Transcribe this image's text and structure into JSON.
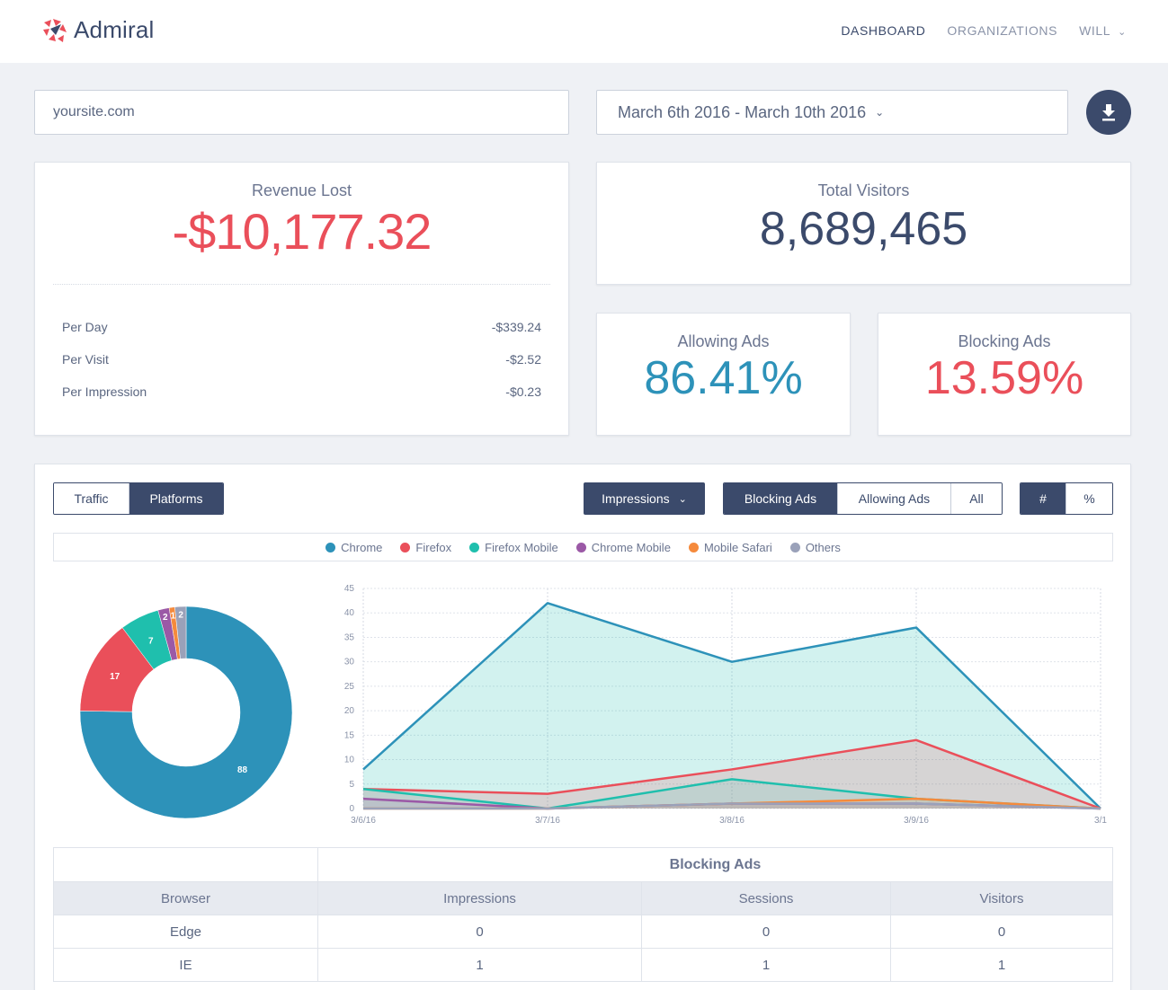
{
  "header": {
    "logo_text": "Admiral",
    "nav": [
      {
        "label": "DASHBOARD",
        "active": true
      },
      {
        "label": "ORGANIZATIONS",
        "active": false
      },
      {
        "label": "WILL",
        "active": false
      }
    ]
  },
  "filters": {
    "site_value": "yoursite.com",
    "date_range": "March 6th 2016 - March 10th 2016"
  },
  "revenue": {
    "title": "Revenue Lost",
    "value": "-$10,177.32",
    "rows": [
      {
        "label": "Per Day",
        "value": "-$339.24"
      },
      {
        "label": "Per Visit",
        "value": "-$2.52"
      },
      {
        "label": "Per Impression",
        "value": "-$0.23"
      }
    ]
  },
  "visitors": {
    "title": "Total Visitors",
    "value": "8,689,465"
  },
  "allowing": {
    "title": "Allowing Ads",
    "value": "86.41%"
  },
  "blocking": {
    "title": "Blocking Ads",
    "value": "13.59%"
  },
  "controls": {
    "tabs": [
      "Traffic",
      "Platforms"
    ],
    "active_tab": "Platforms",
    "metric": "Impressions",
    "filter_buttons": [
      "Blocking Ads",
      "Allowing Ads",
      "All"
    ],
    "active_filter": "Blocking Ads",
    "unit_buttons": [
      "#",
      "%"
    ],
    "active_unit": "#"
  },
  "colors": {
    "Chrome": "#2d92b9",
    "Firefox": "#ea4f5a",
    "Firefox Mobile": "#1fbfad",
    "Chrome Mobile": "#9b59a6",
    "Mobile Safari": "#f58a3c",
    "Others": "#9aa1b9",
    "navy": "#3b4a6b"
  },
  "chart_data": [
    {
      "type": "pie",
      "labels": [
        "Chrome",
        "Firefox",
        "Firefox Mobile",
        "Chrome Mobile",
        "Mobile Safari",
        "Others"
      ],
      "values": [
        88,
        17,
        7,
        2,
        1,
        2
      ]
    },
    {
      "type": "area",
      "x": [
        "3/6/16",
        "3/7/16",
        "3/8/16",
        "3/9/16",
        "3/1"
      ],
      "yticks": [
        0,
        5,
        10,
        15,
        20,
        25,
        30,
        35,
        40,
        45
      ],
      "ylim": [
        0,
        45
      ],
      "legend": [
        "Chrome",
        "Firefox",
        "Firefox Mobile",
        "Chrome Mobile",
        "Mobile Safari",
        "Others"
      ],
      "series": [
        {
          "name": "Chrome",
          "values": [
            8,
            42,
            30,
            37,
            0
          ]
        },
        {
          "name": "Firefox",
          "values": [
            4,
            3,
            8,
            14,
            0
          ]
        },
        {
          "name": "Firefox Mobile",
          "values": [
            4,
            0,
            6,
            2,
            0
          ]
        },
        {
          "name": "Chrome Mobile",
          "values": [
            2,
            0,
            1,
            1,
            0
          ]
        },
        {
          "name": "Mobile Safari",
          "values": [
            0,
            0,
            1,
            2,
            0
          ]
        },
        {
          "name": "Others",
          "values": [
            0,
            0,
            1,
            1,
            0
          ]
        }
      ]
    }
  ],
  "table": {
    "group_header": "Blocking Ads",
    "columns": [
      "Browser",
      "Impressions",
      "Sessions",
      "Visitors"
    ],
    "rows": [
      [
        "Edge",
        "0",
        "0",
        "0"
      ],
      [
        "IE",
        "1",
        "1",
        "1"
      ]
    ]
  }
}
